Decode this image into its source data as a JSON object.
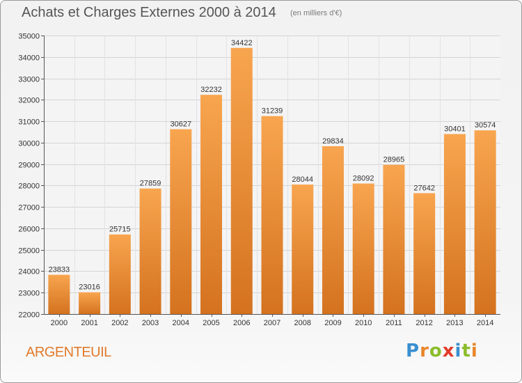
{
  "header": {
    "title": "Achats et Charges Externes 2000 à 2014",
    "subtitle": "(en milliers d'€)"
  },
  "footer": {
    "city": "ARGENTEUIL",
    "logo_text": "Proxiti"
  },
  "colors": {
    "bar_top": "#f8a54f",
    "bar_bottom": "#d4721f",
    "city_text": "#e07a2c"
  },
  "chart_data": {
    "type": "bar",
    "title": "Achats et Charges Externes 2000 à 2014",
    "subtitle": "(en milliers d'€)",
    "xlabel": "",
    "ylabel": "",
    "categories": [
      "2000",
      "2001",
      "2002",
      "2003",
      "2004",
      "2005",
      "2006",
      "2007",
      "2008",
      "2009",
      "2010",
      "2011",
      "2012",
      "2013",
      "2014"
    ],
    "values": [
      23833,
      23016,
      25715,
      27859,
      30627,
      32232,
      34422,
      31239,
      28044,
      29834,
      28092,
      28965,
      27642,
      30401,
      30574
    ],
    "ylim": [
      22000,
      35000
    ],
    "yticks": [
      22000,
      23000,
      24000,
      25000,
      26000,
      27000,
      28000,
      29000,
      30000,
      31000,
      32000,
      33000,
      34000,
      35000
    ],
    "grid": true,
    "legend": "none"
  }
}
